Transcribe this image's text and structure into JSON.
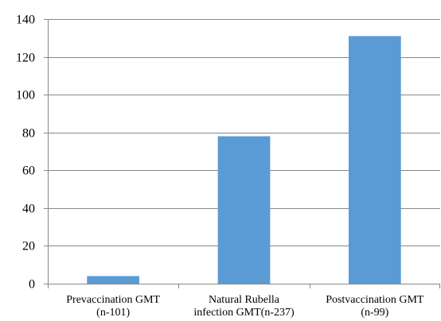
{
  "chart_data": {
    "type": "bar",
    "title": "",
    "xlabel": "",
    "ylabel": "",
    "categories": [
      [
        "Prevaccination GMT",
        "(n-101)"
      ],
      [
        "Natural Rubella",
        "infection GMT(n-237)"
      ],
      [
        "Postvaccination GMT",
        "(n-99)"
      ]
    ],
    "values": [
      4,
      78,
      131
    ],
    "ylim": [
      0,
      140
    ],
    "yticks": [
      0,
      20,
      40,
      60,
      80,
      100,
      120,
      140
    ],
    "grid": true,
    "legend": "none",
    "bar_color": "#5b9bd5",
    "grid_color": "#888888"
  }
}
